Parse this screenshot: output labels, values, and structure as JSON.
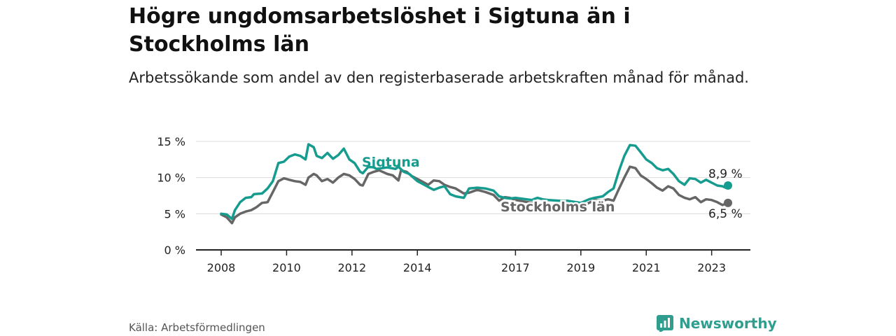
{
  "title": "Högre ungdomsarbetslöshet i Sigtuna än i Stockholms län",
  "subtitle": "Arbetssökande som andel av den registerbaserade arbetskraften månad för månad.",
  "source": "Källa: Arbetsförmedlingen",
  "brand": {
    "name": "Newsworthy",
    "icon": "newsworthy-logo-icon"
  },
  "colors": {
    "sigtuna": "#169c8e",
    "stockholm": "#666666",
    "grid": "#dcdcdc",
    "axis": "#222222"
  },
  "chart_data": {
    "type": "line",
    "title": "Högre ungdomsarbetslöshet i Sigtuna än i Stockholms län",
    "xlabel": "",
    "ylabel": "",
    "xlim": [
      2008,
      2023.9
    ],
    "ylim": [
      0,
      15
    ],
    "y_ticks": [
      0,
      5,
      10,
      15
    ],
    "y_tick_labels": [
      "0 %",
      "5 %",
      "10 %",
      "15 %"
    ],
    "x_ticks": [
      2008,
      2010,
      2012,
      2014,
      2017,
      2019,
      2021,
      2023
    ],
    "x_tick_labels": [
      "2008",
      "2010",
      "2012",
      "2014",
      "2017",
      "2019",
      "2021",
      "2023"
    ],
    "grid": true,
    "series": [
      {
        "name": "Sigtuna",
        "label": "Sigtuna",
        "end_label": "8,9 %",
        "color": "#169c8e",
        "points": [
          [
            2008.0,
            5.0
          ],
          [
            2008.17,
            4.9
          ],
          [
            2008.33,
            4.3
          ],
          [
            2008.42,
            5.5
          ],
          [
            2008.58,
            6.6
          ],
          [
            2008.75,
            7.2
          ],
          [
            2008.92,
            7.3
          ],
          [
            2009.0,
            7.7
          ],
          [
            2009.25,
            7.8
          ],
          [
            2009.42,
            8.5
          ],
          [
            2009.58,
            9.5
          ],
          [
            2009.75,
            12.0
          ],
          [
            2009.92,
            12.2
          ],
          [
            2010.08,
            12.9
          ],
          [
            2010.25,
            13.2
          ],
          [
            2010.42,
            13.0
          ],
          [
            2010.58,
            12.5
          ],
          [
            2010.67,
            14.6
          ],
          [
            2010.83,
            14.2
          ],
          [
            2010.92,
            13.0
          ],
          [
            2011.08,
            12.7
          ],
          [
            2011.25,
            13.4
          ],
          [
            2011.42,
            12.6
          ],
          [
            2011.58,
            13.1
          ],
          [
            2011.75,
            14.0
          ],
          [
            2011.92,
            12.5
          ],
          [
            2012.08,
            12.0
          ],
          [
            2012.25,
            10.8
          ],
          [
            2012.33,
            10.6
          ],
          [
            2012.5,
            11.5
          ],
          [
            2012.67,
            11.4
          ],
          [
            2012.75,
            11.2
          ],
          [
            2013.08,
            11.4
          ],
          [
            2013.33,
            11.2
          ],
          [
            2013.42,
            11.5
          ],
          [
            2013.58,
            10.8
          ],
          [
            2013.75,
            10.5
          ],
          [
            2014.0,
            9.5
          ],
          [
            2014.17,
            9.1
          ],
          [
            2014.33,
            8.7
          ],
          [
            2014.5,
            8.3
          ],
          [
            2014.67,
            8.6
          ],
          [
            2014.83,
            8.8
          ],
          [
            2015.0,
            7.7
          ],
          [
            2015.17,
            7.4
          ],
          [
            2015.42,
            7.2
          ],
          [
            2015.58,
            8.5
          ],
          [
            2015.83,
            8.6
          ],
          [
            2016.08,
            8.5
          ],
          [
            2016.33,
            8.2
          ],
          [
            2016.5,
            7.4
          ],
          [
            2016.67,
            7.2
          ],
          [
            2016.83,
            7.1
          ],
          [
            2017.0,
            7.2
          ],
          [
            2017.5,
            6.9
          ],
          [
            2017.67,
            7.2
          ],
          [
            2017.83,
            7.0
          ],
          [
            2018.0,
            6.9
          ],
          [
            2018.33,
            6.8
          ],
          [
            2018.58,
            6.8
          ],
          [
            2019.0,
            6.5
          ],
          [
            2019.25,
            7.0
          ],
          [
            2019.42,
            7.2
          ],
          [
            2019.67,
            7.4
          ],
          [
            2019.83,
            8.0
          ],
          [
            2020.0,
            8.5
          ],
          [
            2020.17,
            11.0
          ],
          [
            2020.33,
            13.0
          ],
          [
            2020.5,
            14.5
          ],
          [
            2020.67,
            14.4
          ],
          [
            2020.83,
            13.5
          ],
          [
            2021.0,
            12.5
          ],
          [
            2021.17,
            12.0
          ],
          [
            2021.33,
            11.3
          ],
          [
            2021.5,
            11.0
          ],
          [
            2021.67,
            11.2
          ],
          [
            2021.83,
            10.5
          ],
          [
            2022.0,
            9.5
          ],
          [
            2022.17,
            9.0
          ],
          [
            2022.33,
            9.9
          ],
          [
            2022.5,
            9.8
          ],
          [
            2022.67,
            9.3
          ],
          [
            2022.83,
            9.7
          ],
          [
            2023.0,
            9.3
          ],
          [
            2023.17,
            8.9
          ],
          [
            2023.33,
            8.8
          ],
          [
            2023.42,
            8.6
          ],
          [
            2023.5,
            8.9
          ]
        ]
      },
      {
        "name": "Stockholms län",
        "label": "Stockholms län",
        "end_label": "6,5 %",
        "color": "#666666",
        "points": [
          [
            2008.0,
            4.9
          ],
          [
            2008.17,
            4.5
          ],
          [
            2008.33,
            3.7
          ],
          [
            2008.42,
            4.5
          ],
          [
            2008.58,
            5.0
          ],
          [
            2008.75,
            5.3
          ],
          [
            2008.92,
            5.5
          ],
          [
            2009.08,
            5.9
          ],
          [
            2009.25,
            6.5
          ],
          [
            2009.42,
            6.6
          ],
          [
            2009.58,
            8.0
          ],
          [
            2009.75,
            9.5
          ],
          [
            2009.92,
            9.9
          ],
          [
            2010.08,
            9.7
          ],
          [
            2010.25,
            9.5
          ],
          [
            2010.42,
            9.4
          ],
          [
            2010.58,
            9.0
          ],
          [
            2010.67,
            10.0
          ],
          [
            2010.83,
            10.5
          ],
          [
            2010.92,
            10.3
          ],
          [
            2011.08,
            9.5
          ],
          [
            2011.25,
            9.8
          ],
          [
            2011.42,
            9.3
          ],
          [
            2011.58,
            10.0
          ],
          [
            2011.75,
            10.5
          ],
          [
            2011.92,
            10.3
          ],
          [
            2012.08,
            9.8
          ],
          [
            2012.25,
            9.0
          ],
          [
            2012.33,
            8.9
          ],
          [
            2012.5,
            10.5
          ],
          [
            2012.67,
            10.8
          ],
          [
            2012.83,
            11.0
          ],
          [
            2013.08,
            10.5
          ],
          [
            2013.25,
            10.3
          ],
          [
            2013.42,
            9.6
          ],
          [
            2013.5,
            11.0
          ],
          [
            2013.67,
            10.8
          ],
          [
            2013.83,
            10.2
          ],
          [
            2014.0,
            9.8
          ],
          [
            2014.17,
            9.4
          ],
          [
            2014.33,
            9.0
          ],
          [
            2014.5,
            9.6
          ],
          [
            2014.67,
            9.5
          ],
          [
            2014.83,
            9.0
          ],
          [
            2015.0,
            8.7
          ],
          [
            2015.17,
            8.5
          ],
          [
            2015.42,
            7.8
          ],
          [
            2015.58,
            7.9
          ],
          [
            2015.83,
            8.3
          ],
          [
            2016.08,
            8.0
          ],
          [
            2016.33,
            7.6
          ],
          [
            2016.5,
            6.8
          ],
          [
            2016.67,
            7.3
          ],
          [
            2016.83,
            7.2
          ],
          [
            2017.0,
            6.9
          ],
          [
            2017.5,
            6.5
          ],
          [
            2017.67,
            6.2
          ],
          [
            2017.83,
            6.3
          ],
          [
            2018.0,
            6.0
          ],
          [
            2018.33,
            6.3
          ],
          [
            2018.58,
            6.1
          ],
          [
            2019.0,
            6.0
          ],
          [
            2019.25,
            6.5
          ],
          [
            2019.42,
            6.9
          ],
          [
            2019.67,
            6.8
          ],
          [
            2019.83,
            7.0
          ],
          [
            2020.0,
            6.8
          ],
          [
            2020.17,
            8.5
          ],
          [
            2020.33,
            10.0
          ],
          [
            2020.5,
            11.5
          ],
          [
            2020.67,
            11.3
          ],
          [
            2020.83,
            10.3
          ],
          [
            2021.0,
            9.8
          ],
          [
            2021.17,
            9.2
          ],
          [
            2021.33,
            8.6
          ],
          [
            2021.5,
            8.2
          ],
          [
            2021.67,
            8.8
          ],
          [
            2021.83,
            8.5
          ],
          [
            2022.0,
            7.6
          ],
          [
            2022.17,
            7.2
          ],
          [
            2022.33,
            7.0
          ],
          [
            2022.5,
            7.3
          ],
          [
            2022.67,
            6.6
          ],
          [
            2022.83,
            7.0
          ],
          [
            2023.0,
            6.9
          ],
          [
            2023.17,
            6.6
          ],
          [
            2023.33,
            6.2
          ],
          [
            2023.5,
            6.5
          ]
        ]
      }
    ]
  }
}
